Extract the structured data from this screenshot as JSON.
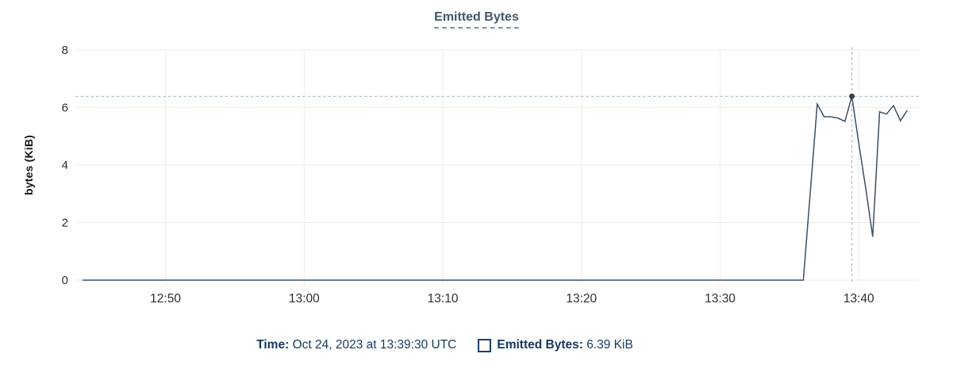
{
  "title": {
    "text": "Emitted Bytes"
  },
  "legend": {
    "time_label": "Time:",
    "time_value": "Oct 24, 2023 at 13:39:30 UTC",
    "series_label": "Emitted Bytes:",
    "series_value": "6.39 KiB"
  },
  "colors": {
    "line": "#3d4f66",
    "dot": "#31425a",
    "grid": "#e9ebee",
    "tick_text": "#2e2e2e",
    "crosshair": "#a3b6c5",
    "title_text": "#43566b",
    "legend_text": "#16375e"
  },
  "chart_data": {
    "type": "line",
    "title": "Emitted Bytes",
    "xlabel": "",
    "ylabel": "bytes (KiB)",
    "x_domain": [
      "12:43:30",
      "13:44:20"
    ],
    "x_ticks": [
      "12:50",
      "13:00",
      "13:10",
      "13:20",
      "13:30",
      "13:40"
    ],
    "ylim": [
      0,
      8
    ],
    "y_ticks": [
      0,
      2,
      4,
      6,
      8
    ],
    "grid": true,
    "legend_position": "bottom",
    "series": [
      {
        "name": "Emitted Bytes",
        "unit": "KiB",
        "points": [
          [
            "12:44:00",
            0
          ],
          [
            "13:36:00",
            0
          ],
          [
            "13:37:00",
            6.12
          ],
          [
            "13:37:30",
            5.68
          ],
          [
            "13:38:00",
            5.68
          ],
          [
            "13:38:30",
            5.63
          ],
          [
            "13:39:00",
            5.52
          ],
          [
            "13:39:30",
            6.39
          ],
          [
            "13:40:00",
            4.75
          ],
          [
            "13:40:30",
            3.2
          ],
          [
            "13:41:00",
            1.51
          ],
          [
            "13:41:30",
            5.85
          ],
          [
            "13:42:00",
            5.77
          ],
          [
            "13:42:30",
            6.07
          ],
          [
            "13:43:00",
            5.54
          ],
          [
            "13:43:30",
            5.9
          ]
        ]
      }
    ],
    "highlight": {
      "time": "13:39:30",
      "value": 6.39,
      "value_label": "6.39 KiB",
      "time_label": "Oct 24, 2023 at 13:39:30 UTC"
    }
  }
}
